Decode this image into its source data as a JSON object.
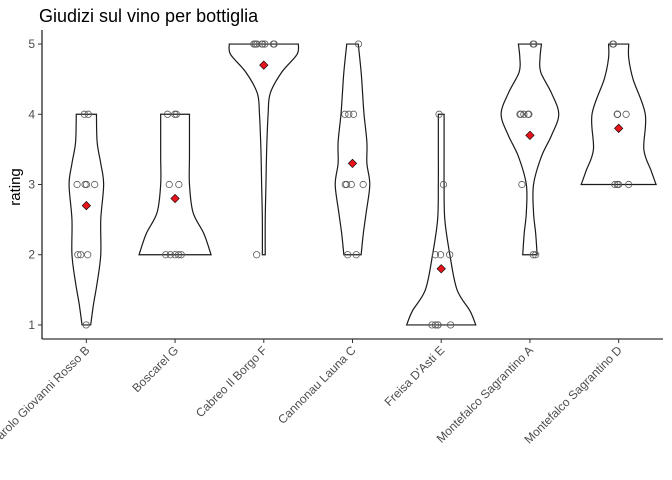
{
  "chart_data": {
    "type": "violin",
    "title": "Giudizi sul vino per bottiglia",
    "xlabel": "",
    "ylabel": "rating",
    "ylim": [
      0.8,
      5.2
    ],
    "yticks": [
      "1",
      "2",
      "3",
      "4",
      "5"
    ],
    "grid": false,
    "legend": "none",
    "colors": {
      "mean": "#e8141c",
      "outline": "#1a1a1a",
      "points": "#595959"
    },
    "categories": [
      "Barolo Giovanni Rosso B",
      "Boscarel G",
      "Cabreo Il Borgo F",
      "Cannonau Launa C",
      "Freisa D'Asti E",
      "Montefalco Sagrantino A",
      "Montefalco Sagrantino D"
    ],
    "ratings": [
      [
        1,
        2,
        2,
        2,
        3,
        3,
        3,
        3,
        4,
        4
      ],
      [
        2,
        2,
        2,
        2,
        2,
        3,
        3,
        4,
        4,
        4
      ],
      [
        2,
        5,
        5,
        5,
        5,
        5,
        5,
        5,
        5,
        5
      ],
      [
        2,
        2,
        3,
        3,
        3,
        3,
        4,
        4,
        4,
        5
      ],
      [
        1,
        1,
        1,
        1,
        1,
        2,
        2,
        2,
        3,
        4
      ],
      [
        2,
        2,
        3,
        4,
        4,
        4,
        4,
        4,
        5,
        5
      ],
      [
        3,
        3,
        3,
        3,
        4,
        4,
        4,
        4,
        5,
        5
      ]
    ],
    "means": [
      2.7,
      2.8,
      4.7,
      3.3,
      1.8,
      3.7,
      3.8
    ],
    "profiles": [
      [
        [
          1,
          0.06
        ],
        [
          1.3,
          0.1
        ],
        [
          1.6,
          0.15
        ],
        [
          2,
          0.2
        ],
        [
          2.5,
          0.2
        ],
        [
          3,
          0.24
        ],
        [
          3.3,
          0.2
        ],
        [
          3.6,
          0.15
        ],
        [
          4,
          0.14
        ]
      ],
      [
        [
          2,
          0.5
        ],
        [
          2.3,
          0.4
        ],
        [
          2.6,
          0.25
        ],
        [
          3,
          0.2
        ],
        [
          3.4,
          0.2
        ],
        [
          3.7,
          0.2
        ],
        [
          4,
          0.2
        ]
      ],
      [
        [
          2,
          0.02
        ],
        [
          2.5,
          0.02
        ],
        [
          3,
          0.03
        ],
        [
          3.5,
          0.04
        ],
        [
          4,
          0.06
        ],
        [
          4.3,
          0.09
        ],
        [
          4.6,
          0.25
        ],
        [
          4.85,
          0.46
        ],
        [
          5,
          0.48
        ]
      ],
      [
        [
          2,
          0.12
        ],
        [
          2.3,
          0.15
        ],
        [
          2.6,
          0.19
        ],
        [
          3,
          0.24
        ],
        [
          3.3,
          0.2
        ],
        [
          3.6,
          0.2
        ],
        [
          4,
          0.16
        ],
        [
          4.3,
          0.14
        ],
        [
          4.6,
          0.12
        ],
        [
          5,
          0.08
        ]
      ],
      [
        [
          1,
          0.48
        ],
        [
          1.2,
          0.4
        ],
        [
          1.5,
          0.22
        ],
        [
          2,
          0.12
        ],
        [
          2.5,
          0.05
        ],
        [
          3,
          0.04
        ],
        [
          3.5,
          0.04
        ],
        [
          4,
          0.04
        ]
      ],
      [
        [
          2,
          0.1
        ],
        [
          2.3,
          0.08
        ],
        [
          2.6,
          0.05
        ],
        [
          3,
          0.05
        ],
        [
          3.4,
          0.16
        ],
        [
          3.7,
          0.3
        ],
        [
          4,
          0.4
        ],
        [
          4.3,
          0.3
        ],
        [
          4.6,
          0.15
        ],
        [
          4.8,
          0.14
        ],
        [
          5,
          0.16
        ]
      ],
      [
        [
          3,
          0.52
        ],
        [
          3.2,
          0.45
        ],
        [
          3.5,
          0.35
        ],
        [
          4,
          0.37
        ],
        [
          4.5,
          0.2
        ],
        [
          4.8,
          0.14
        ],
        [
          5,
          0.14
        ]
      ]
    ]
  }
}
